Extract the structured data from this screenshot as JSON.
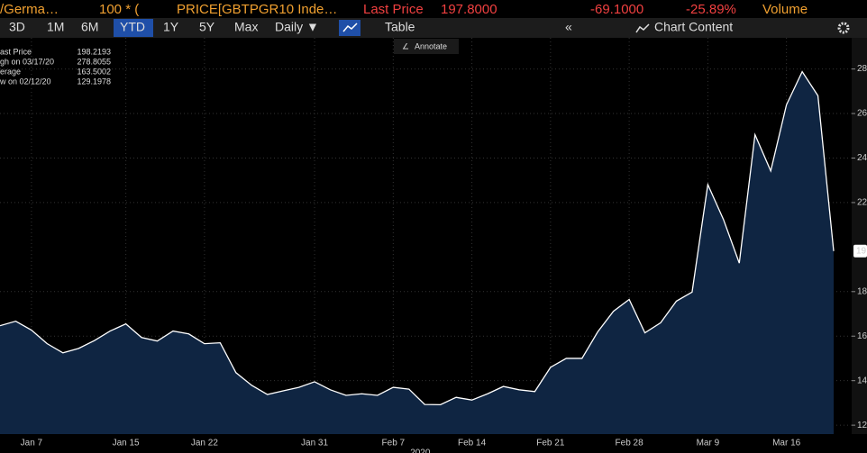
{
  "header": {
    "items": [
      "/Germa…",
      "100 * (",
      "PRICE[GBTPGR10 Inde…",
      "Last Price",
      "197.8000",
      "-69.1000",
      "-25.89%",
      "Volume"
    ]
  },
  "toolbar": {
    "buttons": [
      "3D",
      "1M",
      "6M",
      "YTD",
      "1Y",
      "5Y",
      "Max",
      "Daily ▼",
      "Table",
      "«",
      "Chart Content"
    ],
    "annotate": "Annotate"
  },
  "legend": {
    "rows": [
      {
        "label": "ast Price",
        "value": 198.2193
      },
      {
        "label": "gh on 03/17/20",
        "value": 278.8055
      },
      {
        "label": "erage",
        "value": 163.5002
      },
      {
        "label": "w on 02/12/20",
        "value": 129.1978
      }
    ]
  },
  "chart_data": {
    "type": "area",
    "color": "#0f2542",
    "line_color": "#ffffff",
    "grid": true,
    "categories": [
      null,
      null,
      "Jan 7",
      null,
      null,
      null,
      null,
      null,
      "Jan 15",
      null,
      null,
      null,
      null,
      "Jan 22",
      null,
      null,
      null,
      null,
      null,
      null,
      "Jan 31",
      null,
      null,
      null,
      null,
      "Feb 7",
      null,
      null,
      null,
      null,
      "Feb 14",
      null,
      null,
      null,
      null,
      "Feb 21",
      null,
      null,
      null,
      null,
      "Feb 28",
      null,
      null,
      null,
      null,
      "Mar 9",
      null,
      null,
      null,
      null,
      "Mar 16",
      null,
      null,
      null
    ],
    "values": [
      164.7,
      166.7,
      162.7,
      156.6,
      152.5,
      154.5,
      158.0,
      162.3,
      165.5,
      159.4,
      157.8,
      162.3,
      161.0,
      156.6,
      157.0,
      143.6,
      137.9,
      133.8,
      135.4,
      137.0,
      139.5,
      135.9,
      133.4,
      134.1,
      133.4,
      137.0,
      136.2,
      129.3,
      129.2,
      132.5,
      131.3,
      134.1,
      137.4,
      135.9,
      135.1,
      146.0,
      150.0,
      150.0,
      161.9,
      171.2,
      176.5,
      161.5,
      166.0,
      175.7,
      179.8,
      228.1,
      212.3,
      192.8,
      250.5,
      234.2,
      263.9,
      278.8,
      268.0,
      198.2
    ],
    "ylim": [
      116,
      294
    ],
    "yticks": [
      {
        "value": 120,
        "label": "12"
      },
      {
        "value": 140,
        "label": "14"
      },
      {
        "value": 160,
        "label": "16"
      },
      {
        "value": 180,
        "label": "18"
      },
      {
        "value": 220,
        "label": "22"
      },
      {
        "value": 240,
        "label": "24"
      },
      {
        "value": 260,
        "label": "26"
      },
      {
        "value": 280,
        "label": "28"
      }
    ],
    "last_label": "19",
    "year_label": "2020"
  }
}
